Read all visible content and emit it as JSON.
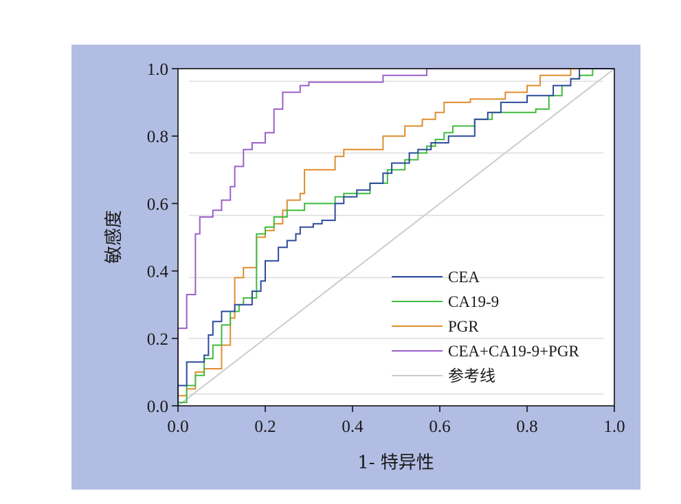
{
  "chart_data": {
    "type": "line",
    "title": "",
    "xlabel": "1- 特异性",
    "ylabel": "敏感度",
    "xlim": [
      0,
      1
    ],
    "ylim": [
      0,
      1
    ],
    "x_ticks": [
      "0.0",
      "0.2",
      "0.4",
      "0.6",
      "0.8",
      "1.0"
    ],
    "y_ticks": [
      "0.0",
      "0.2",
      "0.4",
      "0.6",
      "0.8",
      "1.0"
    ],
    "grid": "horizontal",
    "legend_position": "bottom-right",
    "series": [
      {
        "name": "CEA",
        "color": "#2b4a9b",
        "points": [
          [
            0,
            0
          ],
          [
            0,
            0.06
          ],
          [
            0.02,
            0.06
          ],
          [
            0.02,
            0.13
          ],
          [
            0.06,
            0.13
          ],
          [
            0.06,
            0.15
          ],
          [
            0.07,
            0.15
          ],
          [
            0.07,
            0.21
          ],
          [
            0.08,
            0.21
          ],
          [
            0.08,
            0.25
          ],
          [
            0.1,
            0.25
          ],
          [
            0.1,
            0.28
          ],
          [
            0.13,
            0.28
          ],
          [
            0.13,
            0.3
          ],
          [
            0.15,
            0.3
          ],
          [
            0.15,
            0.3
          ],
          [
            0.17,
            0.3
          ],
          [
            0.17,
            0.34
          ],
          [
            0.19,
            0.34
          ],
          [
            0.19,
            0.37
          ],
          [
            0.2,
            0.37
          ],
          [
            0.2,
            0.43
          ],
          [
            0.23,
            0.43
          ],
          [
            0.23,
            0.47
          ],
          [
            0.25,
            0.47
          ],
          [
            0.25,
            0.49
          ],
          [
            0.27,
            0.49
          ],
          [
            0.27,
            0.51
          ],
          [
            0.28,
            0.51
          ],
          [
            0.28,
            0.53
          ],
          [
            0.31,
            0.53
          ],
          [
            0.31,
            0.54
          ],
          [
            0.33,
            0.54
          ],
          [
            0.33,
            0.55
          ],
          [
            0.36,
            0.55
          ],
          [
            0.36,
            0.6
          ],
          [
            0.38,
            0.6
          ],
          [
            0.38,
            0.62
          ],
          [
            0.41,
            0.62
          ],
          [
            0.41,
            0.64
          ],
          [
            0.44,
            0.64
          ],
          [
            0.44,
            0.66
          ],
          [
            0.47,
            0.66
          ],
          [
            0.47,
            0.69
          ],
          [
            0.49,
            0.69
          ],
          [
            0.49,
            0.72
          ],
          [
            0.53,
            0.72
          ],
          [
            0.53,
            0.75
          ],
          [
            0.55,
            0.75
          ],
          [
            0.55,
            0.76
          ],
          [
            0.58,
            0.76
          ],
          [
            0.58,
            0.78
          ],
          [
            0.62,
            0.78
          ],
          [
            0.62,
            0.8
          ],
          [
            0.68,
            0.8
          ],
          [
            0.68,
            0.85
          ],
          [
            0.71,
            0.85
          ],
          [
            0.71,
            0.87
          ],
          [
            0.74,
            0.87
          ],
          [
            0.74,
            0.9
          ],
          [
            0.8,
            0.9
          ],
          [
            0.8,
            0.92
          ],
          [
            0.86,
            0.92
          ],
          [
            0.86,
            0.95
          ],
          [
            0.9,
            0.95
          ],
          [
            0.9,
            0.97
          ],
          [
            0.92,
            0.97
          ],
          [
            0.92,
            1.0
          ],
          [
            1,
            1
          ]
        ]
      },
      {
        "name": "CA19-9",
        "color": "#3fbb3f",
        "points": [
          [
            0,
            0
          ],
          [
            0,
            0.01
          ],
          [
            0.02,
            0.01
          ],
          [
            0.02,
            0.06
          ],
          [
            0.04,
            0.06
          ],
          [
            0.04,
            0.09
          ],
          [
            0.06,
            0.09
          ],
          [
            0.06,
            0.14
          ],
          [
            0.08,
            0.14
          ],
          [
            0.08,
            0.18
          ],
          [
            0.1,
            0.18
          ],
          [
            0.1,
            0.24
          ],
          [
            0.12,
            0.24
          ],
          [
            0.12,
            0.28
          ],
          [
            0.14,
            0.28
          ],
          [
            0.14,
            0.3
          ],
          [
            0.15,
            0.3
          ],
          [
            0.15,
            0.32
          ],
          [
            0.17,
            0.32
          ],
          [
            0.17,
            0.32
          ],
          [
            0.18,
            0.32
          ],
          [
            0.18,
            0.51
          ],
          [
            0.2,
            0.51
          ],
          [
            0.2,
            0.53
          ],
          [
            0.22,
            0.53
          ],
          [
            0.22,
            0.56
          ],
          [
            0.25,
            0.56
          ],
          [
            0.25,
            0.58
          ],
          [
            0.29,
            0.58
          ],
          [
            0.29,
            0.6
          ],
          [
            0.36,
            0.6
          ],
          [
            0.36,
            0.62
          ],
          [
            0.38,
            0.62
          ],
          [
            0.38,
            0.63
          ],
          [
            0.44,
            0.63
          ],
          [
            0.44,
            0.66
          ],
          [
            0.48,
            0.66
          ],
          [
            0.48,
            0.7
          ],
          [
            0.52,
            0.7
          ],
          [
            0.52,
            0.73
          ],
          [
            0.55,
            0.73
          ],
          [
            0.55,
            0.75
          ],
          [
            0.57,
            0.75
          ],
          [
            0.57,
            0.77
          ],
          [
            0.59,
            0.77
          ],
          [
            0.59,
            0.79
          ],
          [
            0.61,
            0.79
          ],
          [
            0.61,
            0.81
          ],
          [
            0.63,
            0.81
          ],
          [
            0.63,
            0.83
          ],
          [
            0.68,
            0.83
          ],
          [
            0.68,
            0.85
          ],
          [
            0.72,
            0.85
          ],
          [
            0.72,
            0.87
          ],
          [
            0.82,
            0.87
          ],
          [
            0.82,
            0.88
          ],
          [
            0.85,
            0.88
          ],
          [
            0.85,
            0.92
          ],
          [
            0.88,
            0.92
          ],
          [
            0.88,
            0.95
          ],
          [
            0.9,
            0.95
          ],
          [
            0.9,
            0.97
          ],
          [
            0.92,
            0.97
          ],
          [
            0.92,
            0.98
          ],
          [
            0.95,
            0.98
          ],
          [
            0.95,
            1.0
          ],
          [
            1,
            1
          ]
        ]
      },
      {
        "name": "PGR",
        "color": "#e08c2c",
        "points": [
          [
            0,
            0
          ],
          [
            0,
            0.03
          ],
          [
            0.02,
            0.03
          ],
          [
            0.02,
            0.05
          ],
          [
            0.04,
            0.05
          ],
          [
            0.04,
            0.1
          ],
          [
            0.06,
            0.1
          ],
          [
            0.06,
            0.11
          ],
          [
            0.1,
            0.11
          ],
          [
            0.1,
            0.18
          ],
          [
            0.12,
            0.18
          ],
          [
            0.12,
            0.26
          ],
          [
            0.13,
            0.26
          ],
          [
            0.13,
            0.38
          ],
          [
            0.15,
            0.38
          ],
          [
            0.15,
            0.41
          ],
          [
            0.17,
            0.41
          ],
          [
            0.17,
            0.41
          ],
          [
            0.18,
            0.41
          ],
          [
            0.18,
            0.5
          ],
          [
            0.2,
            0.5
          ],
          [
            0.2,
            0.52
          ],
          [
            0.22,
            0.52
          ],
          [
            0.22,
            0.54
          ],
          [
            0.24,
            0.54
          ],
          [
            0.24,
            0.58
          ],
          [
            0.25,
            0.58
          ],
          [
            0.25,
            0.61
          ],
          [
            0.28,
            0.61
          ],
          [
            0.28,
            0.63
          ],
          [
            0.29,
            0.63
          ],
          [
            0.29,
            0.7
          ],
          [
            0.36,
            0.7
          ],
          [
            0.36,
            0.74
          ],
          [
            0.38,
            0.74
          ],
          [
            0.38,
            0.76
          ],
          [
            0.47,
            0.76
          ],
          [
            0.47,
            0.8
          ],
          [
            0.52,
            0.8
          ],
          [
            0.52,
            0.83
          ],
          [
            0.56,
            0.83
          ],
          [
            0.56,
            0.85
          ],
          [
            0.59,
            0.85
          ],
          [
            0.59,
            0.87
          ],
          [
            0.61,
            0.87
          ],
          [
            0.61,
            0.9
          ],
          [
            0.67,
            0.9
          ],
          [
            0.67,
            0.91
          ],
          [
            0.75,
            0.91
          ],
          [
            0.75,
            0.93
          ],
          [
            0.8,
            0.93
          ],
          [
            0.8,
            0.95
          ],
          [
            0.83,
            0.95
          ],
          [
            0.83,
            0.98
          ],
          [
            0.9,
            0.98
          ],
          [
            0.9,
            1.0
          ],
          [
            1,
            1
          ]
        ]
      },
      {
        "name": "CEA+CA19-9+PGR",
        "color": "#9b5fc8",
        "points": [
          [
            0,
            0
          ],
          [
            0,
            0.23
          ],
          [
            0.02,
            0.23
          ],
          [
            0.02,
            0.33
          ],
          [
            0.04,
            0.33
          ],
          [
            0.04,
            0.51
          ],
          [
            0.05,
            0.51
          ],
          [
            0.05,
            0.56
          ],
          [
            0.08,
            0.56
          ],
          [
            0.08,
            0.58
          ],
          [
            0.1,
            0.58
          ],
          [
            0.1,
            0.61
          ],
          [
            0.12,
            0.61
          ],
          [
            0.12,
            0.65
          ],
          [
            0.13,
            0.65
          ],
          [
            0.13,
            0.71
          ],
          [
            0.15,
            0.71
          ],
          [
            0.15,
            0.76
          ],
          [
            0.17,
            0.76
          ],
          [
            0.17,
            0.78
          ],
          [
            0.2,
            0.78
          ],
          [
            0.2,
            0.81
          ],
          [
            0.22,
            0.81
          ],
          [
            0.22,
            0.88
          ],
          [
            0.24,
            0.88
          ],
          [
            0.24,
            0.93
          ],
          [
            0.28,
            0.93
          ],
          [
            0.28,
            0.95
          ],
          [
            0.3,
            0.95
          ],
          [
            0.3,
            0.96
          ],
          [
            0.47,
            0.96
          ],
          [
            0.47,
            0.98
          ],
          [
            0.57,
            0.98
          ],
          [
            0.57,
            1.0
          ],
          [
            1,
            1
          ]
        ]
      },
      {
        "name": "参考线",
        "color": "#cccccc",
        "points": [
          [
            0,
            0
          ],
          [
            1,
            1
          ]
        ]
      }
    ]
  }
}
